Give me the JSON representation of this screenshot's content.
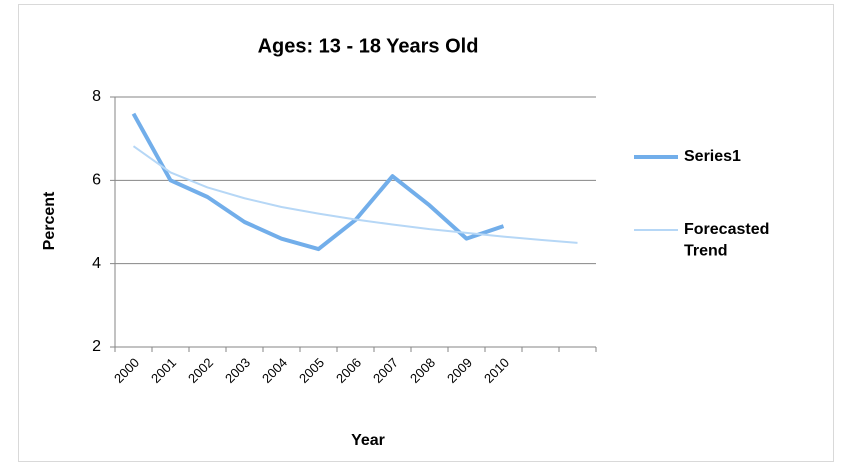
{
  "chart_data": {
    "type": "line",
    "title": "Ages: 13 - 18 Years Old",
    "x_label": "Year",
    "y_label": "Percent",
    "categories": [
      "2000",
      "2001",
      "2002",
      "2003",
      "2004",
      "2005",
      "2006",
      "2007",
      "2008",
      "2009",
      "2010",
      null,
      null
    ],
    "series": [
      {
        "name": "Series1",
        "color": "#72aeea",
        "values": [
          7.6,
          6.0,
          5.6,
          5.0,
          4.6,
          4.35,
          5.05,
          6.1,
          5.4,
          4.6,
          4.9,
          null,
          null
        ]
      },
      {
        "name": "Forecasted Trend",
        "color": "#b6d7f6",
        "values": [
          6.82,
          6.19,
          5.83,
          5.57,
          5.36,
          5.2,
          5.06,
          4.94,
          4.83,
          4.74,
          4.65,
          4.57,
          4.5
        ]
      }
    ],
    "ylim": [
      2,
      8
    ],
    "yticks": [
      2,
      4,
      6,
      8
    ],
    "grid": true,
    "legend": "right"
  }
}
